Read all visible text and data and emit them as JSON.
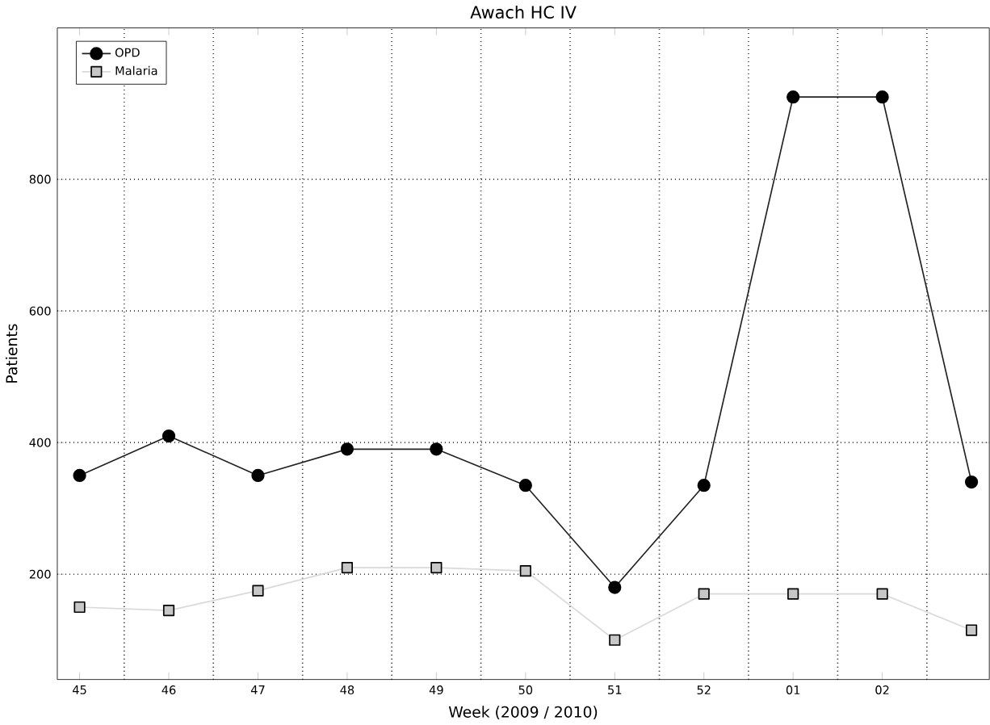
{
  "chart_data": {
    "type": "line",
    "title": "Awach HC IV",
    "xlabel": "Week (2009 / 2010)",
    "ylabel": "Patients",
    "categories": [
      "45",
      "46",
      "47",
      "48",
      "49",
      "50",
      "51",
      "52",
      "01",
      "02",
      null
    ],
    "series": [
      {
        "name": "OPD",
        "color": "#222222",
        "marker": "circle",
        "values": [
          350,
          410,
          350,
          390,
          390,
          335,
          180,
          335,
          925,
          925,
          340
        ]
      },
      {
        "name": "Malaria",
        "color": "#d9d9d9",
        "marker": "square",
        "values": [
          150,
          145,
          175,
          210,
          210,
          205,
          100,
          170,
          170,
          170,
          115
        ]
      }
    ],
    "ylim": [
      40,
      1030
    ],
    "yticks": [
      200,
      400,
      600,
      800
    ],
    "grid": true,
    "legend": "top left",
    "line_style": "solid"
  }
}
